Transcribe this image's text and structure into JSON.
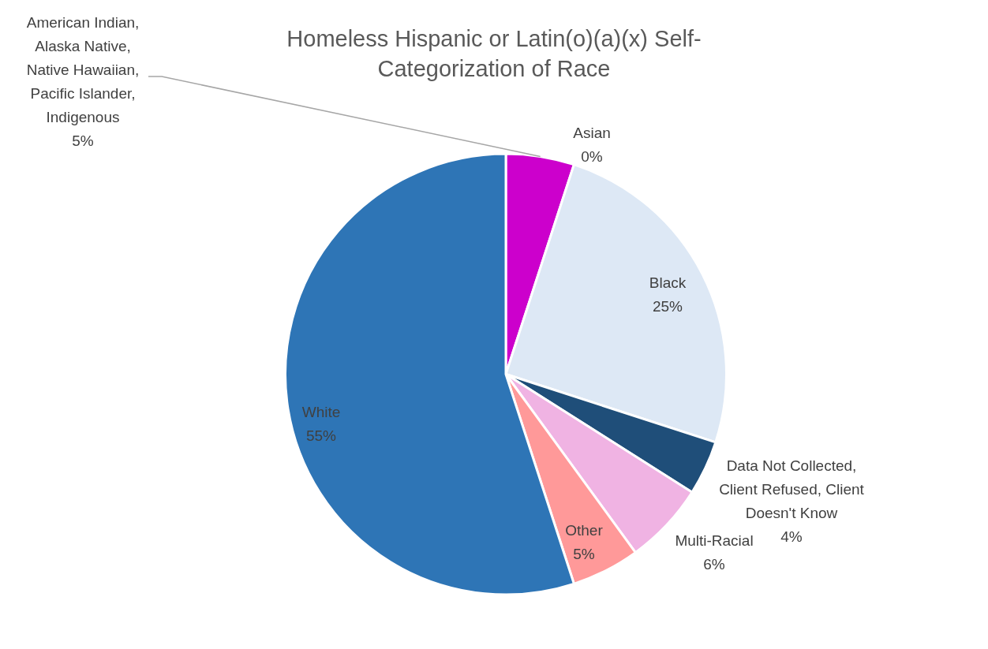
{
  "chart_data": {
    "type": "pie",
    "title": "Homeless Hispanic or Latin(o)(a)(x) Self-Categorization of Race",
    "categories": [
      "American Indian, Alaska Native, Native Hawaiian, Pacific Islander, Indigenous",
      "Asian",
      "Black",
      "Data Not Collected, Client Refused, Client Doesn't Know",
      "Multi-Racial",
      "Other",
      "White"
    ],
    "values": [
      5,
      0,
      25,
      4,
      6,
      5,
      55
    ],
    "colors": [
      "#cc00cc",
      "#a5a5a5",
      "#dde8f5",
      "#1f4e79",
      "#f0b3e3",
      "#ff9999",
      "#2e75b6"
    ],
    "value_labels": [
      "5%",
      "0%",
      "25%",
      "4%",
      "6%",
      "5%",
      "55%"
    ],
    "legend": false
  }
}
